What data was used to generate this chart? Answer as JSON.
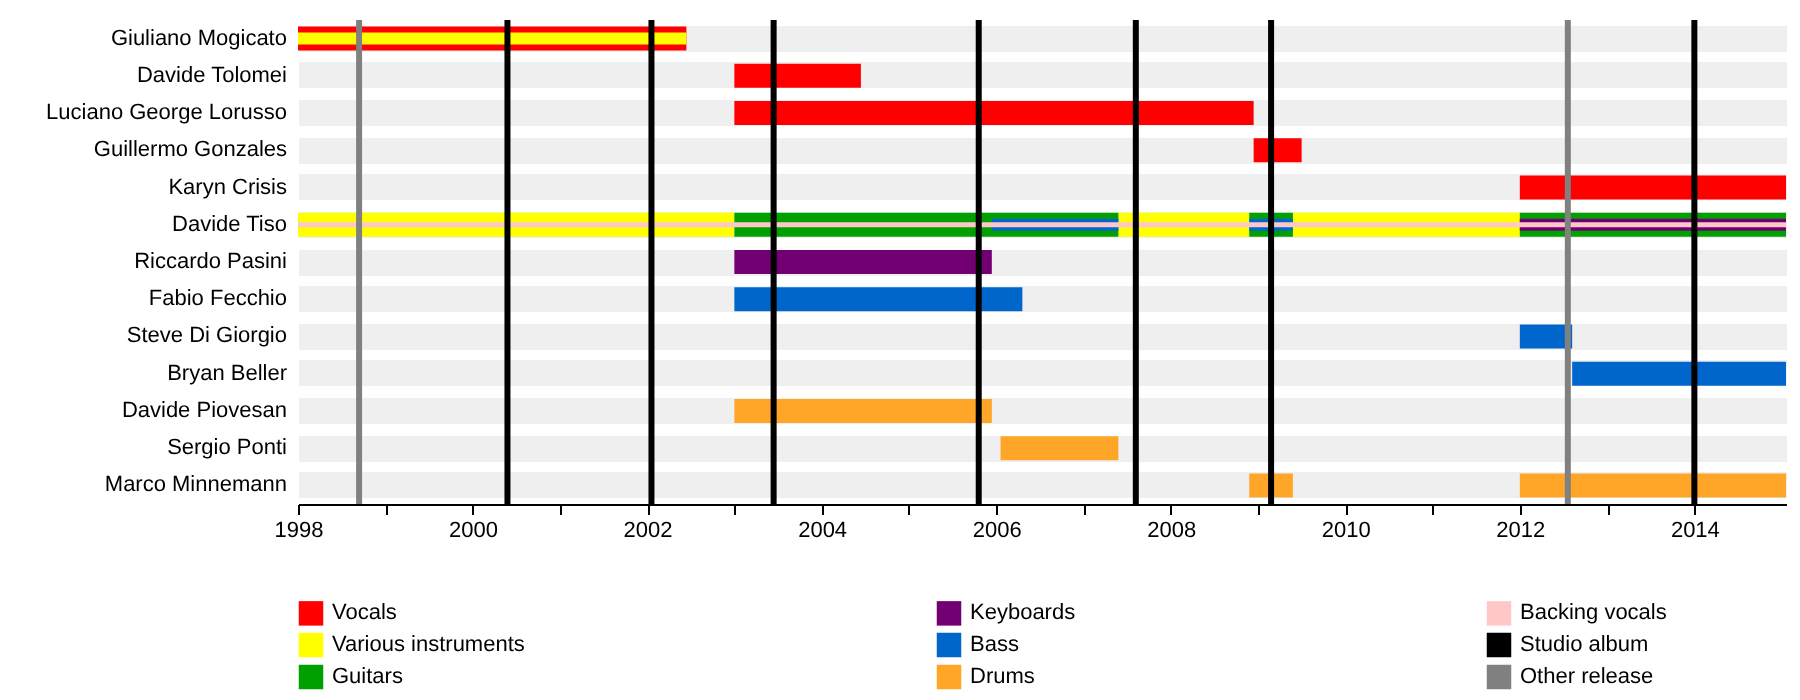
{
  "chart_data": {
    "type": "bar",
    "orientation": "horizontal",
    "categories": [
      "Giuliano Mogicato",
      "Davide Tolomei",
      "Luciano George Lorusso",
      "Guillermo Gonzales",
      "Karyn Crisis",
      "Davide Tiso",
      "Riccardo Pasini",
      "Fabio Fecchio",
      "Steve Di Giorgio",
      "Bryan Beller",
      "Davide Piovesan",
      "Sergio Ponti",
      "Marco Minnemann"
    ],
    "series": [
      {
        "name": "Vocals",
        "color": "#ff0000",
        "base": [
          1998,
          2003,
          2003,
          2008.95,
          2012,
          null,
          null,
          null,
          null,
          null,
          null,
          null,
          null
        ],
        "values": [
          4.45,
          1.45,
          5.95,
          0.55,
          3.05,
          null,
          null,
          null,
          null,
          null,
          null,
          null,
          null
        ]
      },
      {
        "name": "Various instruments",
        "color": "#ffff00",
        "base": [
          1998,
          null,
          null,
          null,
          null,
          1998,
          null,
          null,
          null,
          null,
          null,
          null,
          null
        ],
        "values": [
          4.45,
          null,
          null,
          null,
          null,
          5,
          null,
          null,
          null,
          null,
          null,
          null,
          null
        ]
      },
      {
        "color": "#ffff00",
        "base": [
          null,
          null,
          null,
          null,
          null,
          2007.4,
          null,
          null,
          null,
          null,
          null,
          null,
          null
        ],
        "values": [
          null,
          null,
          null,
          null,
          null,
          1.5,
          null,
          null,
          null,
          null,
          null,
          null,
          null
        ]
      },
      {
        "color": "#ffff00",
        "base": [
          null,
          null,
          null,
          null,
          null,
          2009.4,
          null,
          null,
          null,
          null,
          null,
          null,
          null
        ],
        "values": [
          null,
          null,
          null,
          null,
          null,
          2.6,
          null,
          null,
          null,
          null,
          null,
          null,
          null
        ]
      },
      {
        "name": "Guitars",
        "color": "#00a000",
        "base": [
          null,
          null,
          null,
          null,
          null,
          2003,
          null,
          null,
          null,
          null,
          null,
          null,
          null
        ],
        "values": [
          null,
          null,
          null,
          null,
          null,
          4.4,
          null,
          null,
          null,
          null,
          null,
          null,
          null
        ]
      },
      {
        "color": "#00a000",
        "base": [
          null,
          null,
          null,
          null,
          null,
          2008.9,
          null,
          null,
          null,
          null,
          null,
          null,
          null
        ],
        "values": [
          null,
          null,
          null,
          null,
          null,
          0.5,
          null,
          null,
          null,
          null,
          null,
          null,
          null
        ]
      },
      {
        "color": "#00a000",
        "base": [
          null,
          null,
          null,
          null,
          null,
          2012,
          null,
          null,
          null,
          null,
          null,
          null,
          null
        ],
        "values": [
          null,
          null,
          null,
          null,
          null,
          3.05,
          null,
          null,
          null,
          null,
          null,
          null,
          null
        ]
      },
      {
        "name": "Keyboards",
        "color": "#730073",
        "base": [
          null,
          null,
          null,
          null,
          null,
          2012,
          2003,
          null,
          null,
          null,
          null,
          null,
          null
        ],
        "values": [
          null,
          null,
          null,
          null,
          null,
          3.05,
          2.95,
          null,
          null,
          null,
          null,
          null,
          null
        ]
      },
      {
        "name": "Bass",
        "color": "#0066cc",
        "base": [
          null,
          null,
          null,
          null,
          null,
          2005.95,
          null,
          2003,
          2012,
          2012.6,
          null,
          null,
          null
        ],
        "values": [
          null,
          null,
          null,
          null,
          null,
          1.45,
          null,
          3.3,
          0.6,
          2.45,
          null,
          null,
          null
        ]
      },
      {
        "color": "#0066cc",
        "base": [
          null,
          null,
          null,
          null,
          null,
          2008.9,
          null,
          null,
          null,
          null,
          null,
          null,
          null
        ],
        "values": [
          null,
          null,
          null,
          null,
          null,
          0.5,
          null,
          null,
          null,
          null,
          null,
          null,
          null
        ]
      },
      {
        "name": "Drums",
        "color": "#ffa528",
        "base": [
          null,
          null,
          null,
          null,
          null,
          null,
          null,
          null,
          null,
          null,
          2003,
          2006.05,
          2008.9
        ],
        "values": [
          null,
          null,
          null,
          null,
          null,
          null,
          null,
          null,
          null,
          null,
          2.95,
          1.35,
          0.5
        ]
      },
      {
        "color": "#ffa528",
        "base": [
          null,
          null,
          null,
          null,
          null,
          null,
          null,
          null,
          null,
          null,
          null,
          null,
          2012
        ],
        "values": [
          null,
          null,
          null,
          null,
          null,
          null,
          null,
          null,
          null,
          null,
          null,
          null,
          3.05
        ]
      },
      {
        "name": "Backing vocals",
        "color": "#ffc8c8",
        "base": [
          null,
          null,
          null,
          null,
          null,
          1998,
          null,
          null,
          null,
          null,
          null,
          null,
          null
        ],
        "values": [
          null,
          null,
          null,
          null,
          null,
          17.05,
          null,
          null,
          null,
          null,
          null,
          null,
          null
        ]
      }
    ],
    "ref_lines": [
      {
        "axis": "x",
        "value": 2000.4,
        "label": "Studio album",
        "color": "#000000"
      },
      {
        "axis": "x",
        "value": 2002.05,
        "color": "#000000"
      },
      {
        "axis": "x",
        "value": 2003.45,
        "color": "#000000"
      },
      {
        "axis": "x",
        "value": 2005.8,
        "color": "#000000"
      },
      {
        "axis": "x",
        "value": 2007.6,
        "color": "#000000"
      },
      {
        "axis": "x",
        "value": 2009.15,
        "color": "#000000"
      },
      {
        "axis": "x",
        "value": 2014,
        "color": "#000000"
      },
      {
        "axis": "x",
        "value": 1998.7,
        "label": "Other release",
        "color": "#808080"
      },
      {
        "axis": "x",
        "value": 2012.55,
        "color": "#808080"
      }
    ],
    "xlim": [
      1998,
      2015.05
    ],
    "xticks": [
      1998,
      {
        "value": 1999,
        "label": null
      },
      2000,
      {
        "value": 2001,
        "label": null
      },
      2002,
      {
        "value": 2003,
        "label": null
      },
      2004,
      {
        "value": 2005,
        "label": null
      },
      2006,
      {
        "value": 2007,
        "label": null
      },
      2008,
      {
        "value": 2009,
        "label": null
      },
      2010,
      {
        "value": 2011,
        "label": null
      },
      2012,
      {
        "value": 2013,
        "label": null
      },
      2014
    ],
    "grid": "y",
    "legend": "bottom"
  }
}
